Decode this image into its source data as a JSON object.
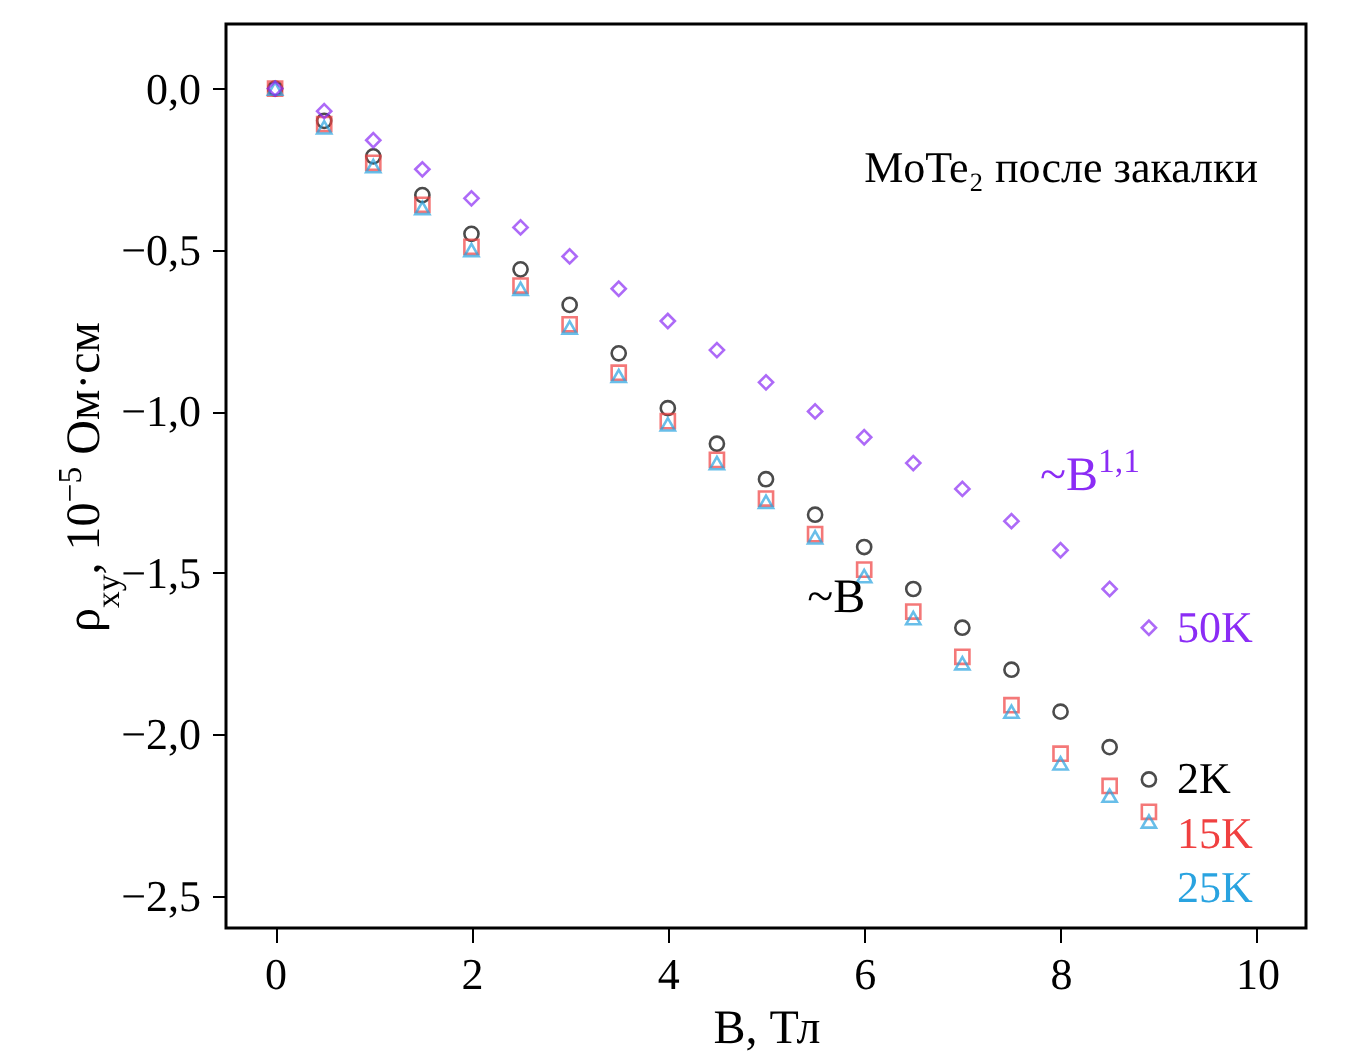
{
  "chart_data": {
    "type": "scatter",
    "xlabel": "B, Тл",
    "ylabel": "ρ$_{xy}$, 10$^{−5}$ Ом·см",
    "x": [
      0,
      0.5,
      1,
      1.5,
      2,
      2.5,
      3,
      3.5,
      4,
      4.5,
      5,
      5.5,
      6,
      6.5,
      7,
      7.5,
      8,
      8.5,
      8.9
    ],
    "series": [
      {
        "name": "2K",
        "color": "#000000",
        "marker": "circle",
        "values": [
          0,
          -0.1,
          -0.21,
          -0.33,
          -0.45,
          -0.56,
          -0.67,
          -0.82,
          -0.99,
          -1.1,
          -1.21,
          -1.32,
          -1.42,
          -1.55,
          -1.67,
          -1.8,
          -1.93,
          -2.04,
          -2.14
        ]
      },
      {
        "name": "15K",
        "color": "#f04040",
        "marker": "square",
        "values": [
          0,
          -0.11,
          -0.23,
          -0.36,
          -0.49,
          -0.61,
          -0.73,
          -0.88,
          -1.03,
          -1.15,
          -1.27,
          -1.38,
          -1.49,
          -1.62,
          -1.76,
          -1.91,
          -2.06,
          -2.16,
          -2.24
        ]
      },
      {
        "name": "25K",
        "color": "#29a3e0",
        "marker": "triangle",
        "values": [
          0,
          -0.12,
          -0.24,
          -0.37,
          -0.5,
          -0.62,
          -0.74,
          -0.89,
          -1.04,
          -1.16,
          -1.28,
          -1.39,
          -1.51,
          -1.64,
          -1.78,
          -1.93,
          -2.09,
          -2.19,
          -2.27
        ]
      },
      {
        "name": "50K",
        "color": "#8b2cf5",
        "marker": "diamond",
        "values": [
          0,
          -0.07,
          -0.16,
          -0.25,
          -0.34,
          -0.43,
          -0.52,
          -0.62,
          -0.72,
          -0.81,
          -0.91,
          -1.0,
          -1.08,
          -1.16,
          -1.24,
          -1.34,
          -1.43,
          -1.55,
          -1.67
        ]
      }
    ],
    "annotations": [
      "MoTe₂ после закалки",
      "~B",
      "~B$^{1,1}$"
    ],
    "xlim": [
      -0.5,
      10.5
    ],
    "xticks": [
      0,
      2,
      4,
      6,
      8,
      10
    ],
    "ylim": [
      -2.6,
      0.2
    ],
    "yticks": [
      {
        "value": 0,
        "label": "0,0"
      },
      {
        "value": -0.5,
        "label": "−0,5"
      },
      {
        "value": -1,
        "label": "−1,0"
      },
      {
        "value": -1.5,
        "label": "−1,5"
      },
      {
        "value": -2,
        "label": "−2,0"
      },
      {
        "value": -2.5,
        "label": "−2,5"
      }
    ],
    "grid": false
  }
}
